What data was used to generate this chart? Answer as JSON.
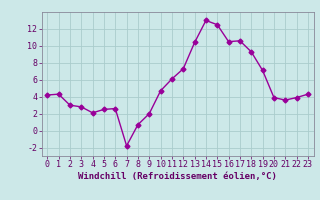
{
  "x": [
    0,
    1,
    2,
    3,
    4,
    5,
    6,
    7,
    8,
    9,
    10,
    11,
    12,
    13,
    14,
    15,
    16,
    17,
    18,
    19,
    20,
    21,
    22,
    23
  ],
  "y": [
    4.2,
    4.3,
    3.0,
    2.8,
    2.1,
    2.5,
    2.6,
    -1.8,
    0.7,
    2.0,
    4.7,
    6.1,
    7.3,
    10.4,
    13.0,
    12.5,
    10.5,
    10.6,
    9.3,
    7.1,
    3.9,
    3.6,
    3.9,
    4.3
  ],
  "line_color": "#990099",
  "marker": "D",
  "marker_size": 2.5,
  "bg_color": "#cce8e8",
  "grid_color": "#aacccc",
  "xlabel": "Windchill (Refroidissement éolien,°C)",
  "ylim": [
    -3,
    14
  ],
  "yticks": [
    -2,
    0,
    2,
    4,
    6,
    8,
    10,
    12
  ],
  "xticks": [
    0,
    1,
    2,
    3,
    4,
    5,
    6,
    7,
    8,
    9,
    10,
    11,
    12,
    13,
    14,
    15,
    16,
    17,
    18,
    19,
    20,
    21,
    22,
    23
  ],
  "tick_color": "#660066",
  "label_color": "#660066",
  "label_fontsize": 6.5,
  "tick_fontsize": 6.0,
  "spine_color": "#888899"
}
